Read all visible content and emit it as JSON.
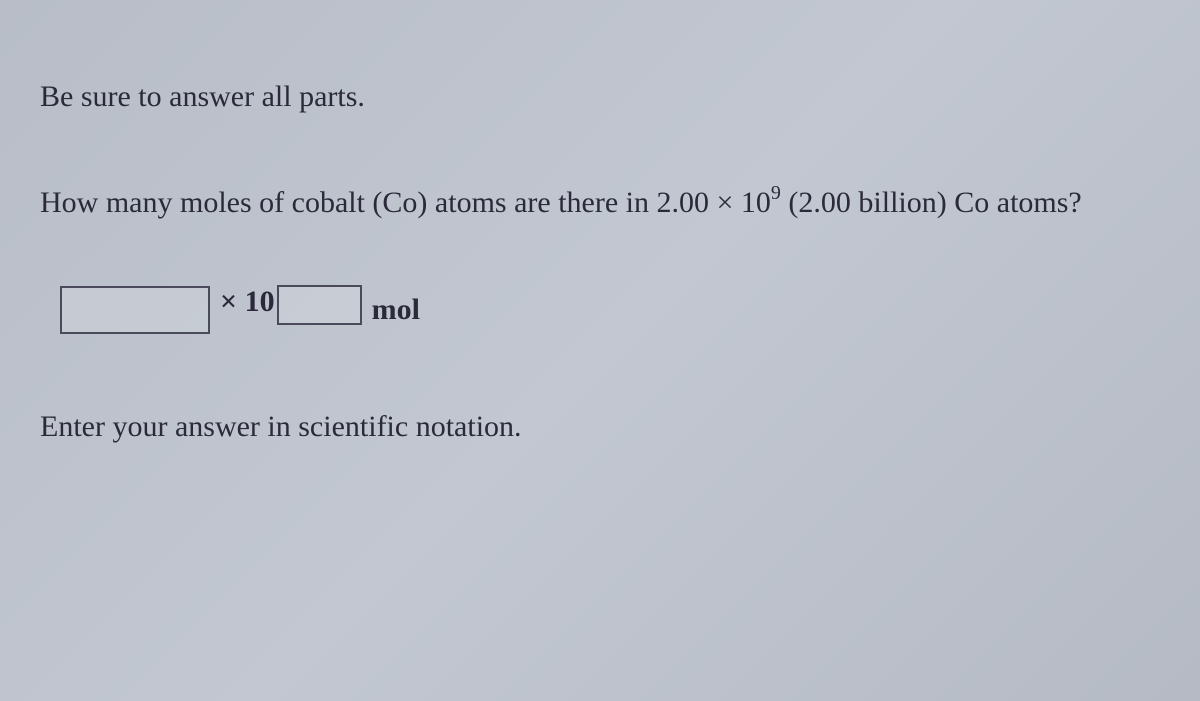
{
  "instruction": "Be sure to answer all parts.",
  "question": {
    "prefix": "How many moles of cobalt (Co) atoms are there in 2.00 × 10",
    "exponent": "9",
    "suffix": " (2.00 billion) Co atoms?"
  },
  "answer_row": {
    "coefficient_value": "",
    "multiplier_label": "× 10",
    "exponent_value": "",
    "unit": "mol"
  },
  "footer": "Enter your answer in scientific notation.",
  "colors": {
    "background": "#bcc1cb",
    "text": "#2a2a3a",
    "input_border": "#4a4a5a"
  }
}
